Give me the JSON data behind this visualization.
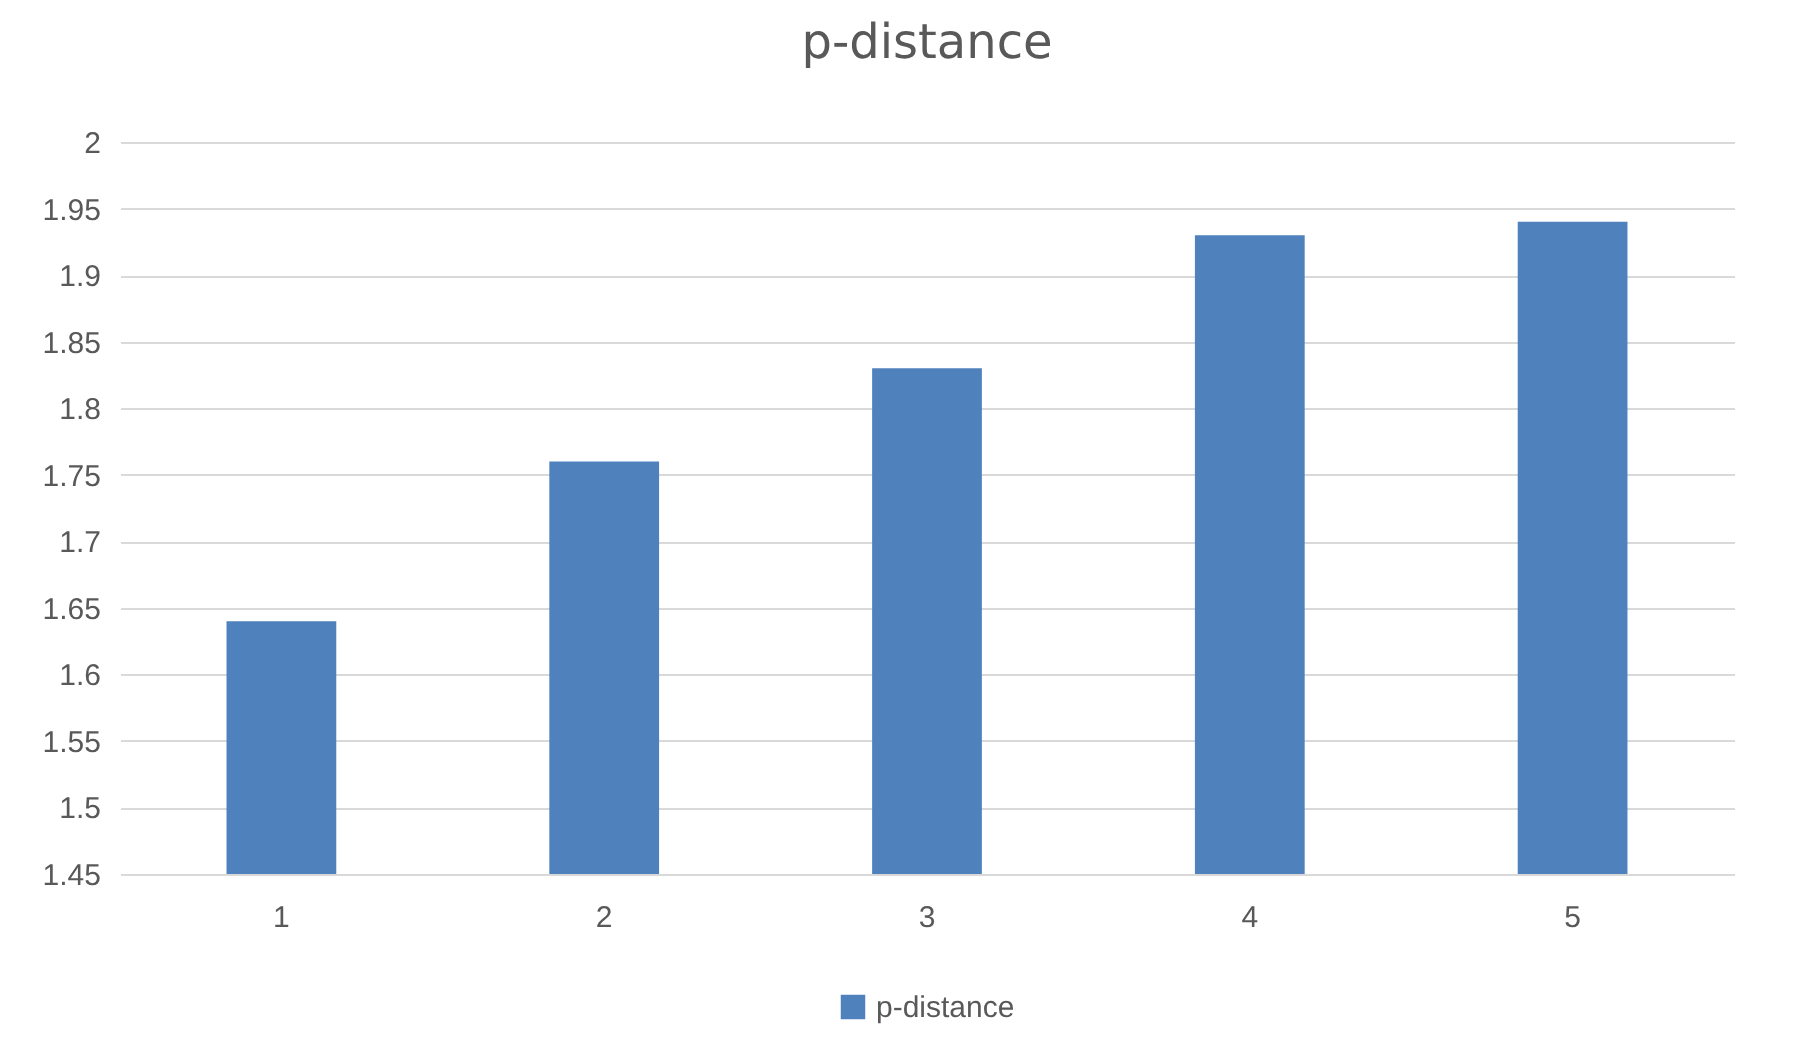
{
  "chart_data": {
    "type": "bar",
    "title": "p-distance",
    "categories": [
      "1",
      "2",
      "3",
      "4",
      "5"
    ],
    "series": [
      {
        "name": "p-distance",
        "color": "#4f81bd",
        "values": [
          1.64,
          1.76,
          1.83,
          1.93,
          1.94
        ]
      }
    ],
    "ylim": [
      1.45,
      2
    ],
    "yticks": [
      1.45,
      1.5,
      1.55,
      1.6,
      1.65,
      1.7,
      1.75,
      1.8,
      1.85,
      1.9,
      1.95,
      2
    ],
    "grid": "y",
    "legend": "bottom"
  }
}
